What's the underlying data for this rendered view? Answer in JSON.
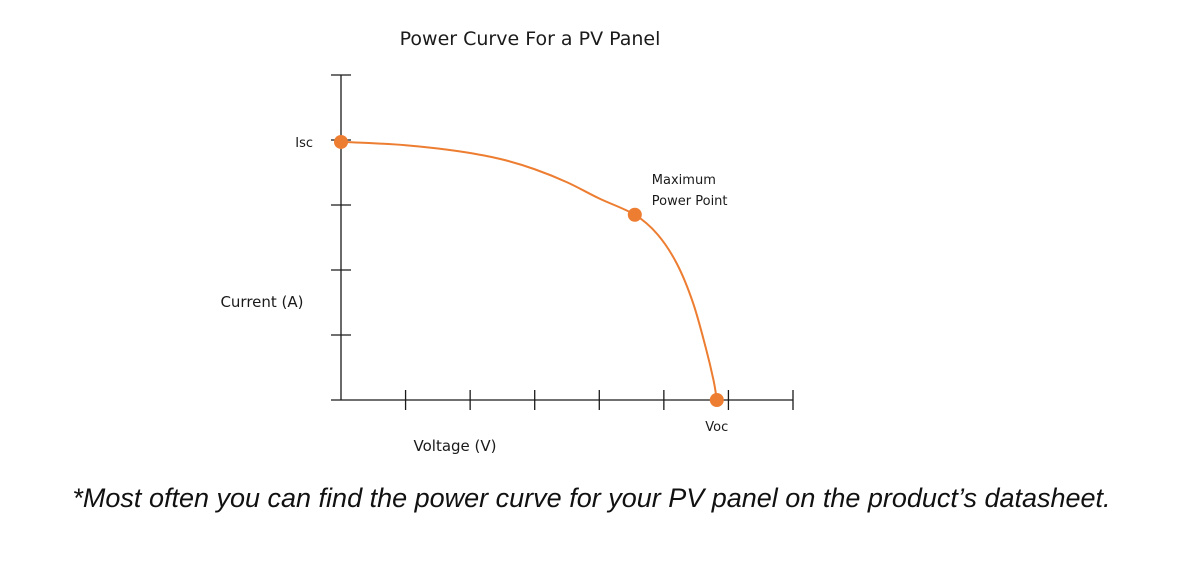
{
  "chart_data": {
    "type": "line",
    "title": "Power Curve For a PV Panel",
    "xlabel": "Voltage (V)",
    "ylabel": "Current (A)",
    "xlim": [
      0,
      7
    ],
    "ylim": [
      0,
      5
    ],
    "x_ticks": [
      0,
      1,
      2,
      3,
      4,
      5,
      6,
      7
    ],
    "y_ticks": [
      0,
      1,
      2,
      3,
      4,
      5
    ],
    "series": [
      {
        "color": "#ed7d31",
        "points": [
          [
            0,
            3.97
          ],
          [
            0.5,
            3.95
          ],
          [
            1,
            3.92
          ],
          [
            1.5,
            3.87
          ],
          [
            2,
            3.8
          ],
          [
            2.5,
            3.7
          ],
          [
            3,
            3.55
          ],
          [
            3.5,
            3.35
          ],
          [
            4,
            3.1
          ],
          [
            4.55,
            2.85
          ],
          [
            4.9,
            2.55
          ],
          [
            5.2,
            2.1
          ],
          [
            5.45,
            1.5
          ],
          [
            5.65,
            0.8
          ],
          [
            5.77,
            0.3
          ],
          [
            5.82,
            0
          ]
        ]
      }
    ],
    "markers": [
      {
        "x": 0,
        "y": 3.97,
        "label": "Isc"
      },
      {
        "x": 4.55,
        "y": 2.85,
        "label_lines": [
          "Maximum",
          "Power Point"
        ]
      },
      {
        "x": 5.82,
        "y": 0,
        "label": "Voc"
      }
    ],
    "grid": false,
    "legend": "none"
  },
  "caption": "*Most often you can find the power curve for your PV panel on the product’s datasheet."
}
